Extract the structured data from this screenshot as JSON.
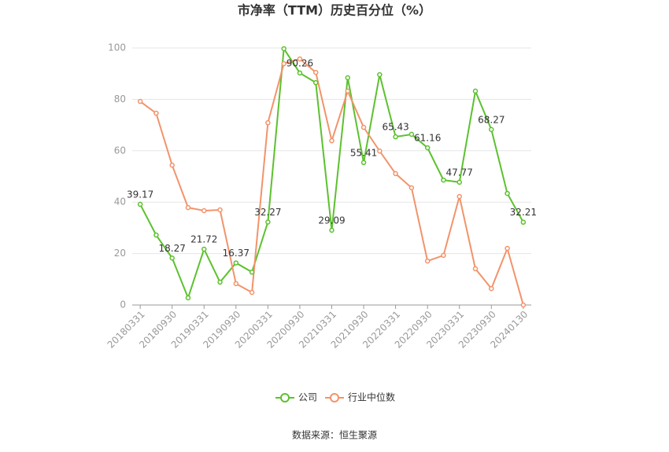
{
  "chart_data": {
    "type": "line",
    "title": "市净率（TTM）历史百分位（%）",
    "source": "数据来源：恒生聚源",
    "categories": [
      "20180331",
      null,
      "20180930",
      null,
      "20190331",
      null,
      "20190930",
      null,
      "20200331",
      null,
      "20200930",
      null,
      "20210331",
      null,
      "20210930",
      null,
      "20220331",
      null,
      "20220930",
      null,
      "20230331",
      null,
      "20230930",
      null,
      "20240130"
    ],
    "series": [
      {
        "name": "公司",
        "color": "#5cc12e",
        "values": [
          39.17,
          27.2,
          18.27,
          2.8,
          21.72,
          8.9,
          16.37,
          12.8,
          32.27,
          99.7,
          90.26,
          86.5,
          29.09,
          88.4,
          55.41,
          89.6,
          65.43,
          66.4,
          61.16,
          48.6,
          47.77,
          83.2,
          68.27,
          43.4,
          32.21
        ]
      },
      {
        "name": "行业中位数",
        "color": "#f2936a",
        "values": [
          79.2,
          74.6,
          54.4,
          37.9,
          36.7,
          37,
          8.3,
          4.9,
          70.9,
          93.9,
          95.7,
          90.5,
          63.9,
          83.2,
          69.1,
          59.9,
          51.1,
          45.6,
          17.1,
          19.3,
          42.2,
          14.1,
          6.4,
          22,
          0
        ]
      }
    ],
    "ylim": [
      0,
      100
    ],
    "yticks": [
      0,
      20,
      40,
      60,
      80,
      100
    ],
    "grid": true
  }
}
